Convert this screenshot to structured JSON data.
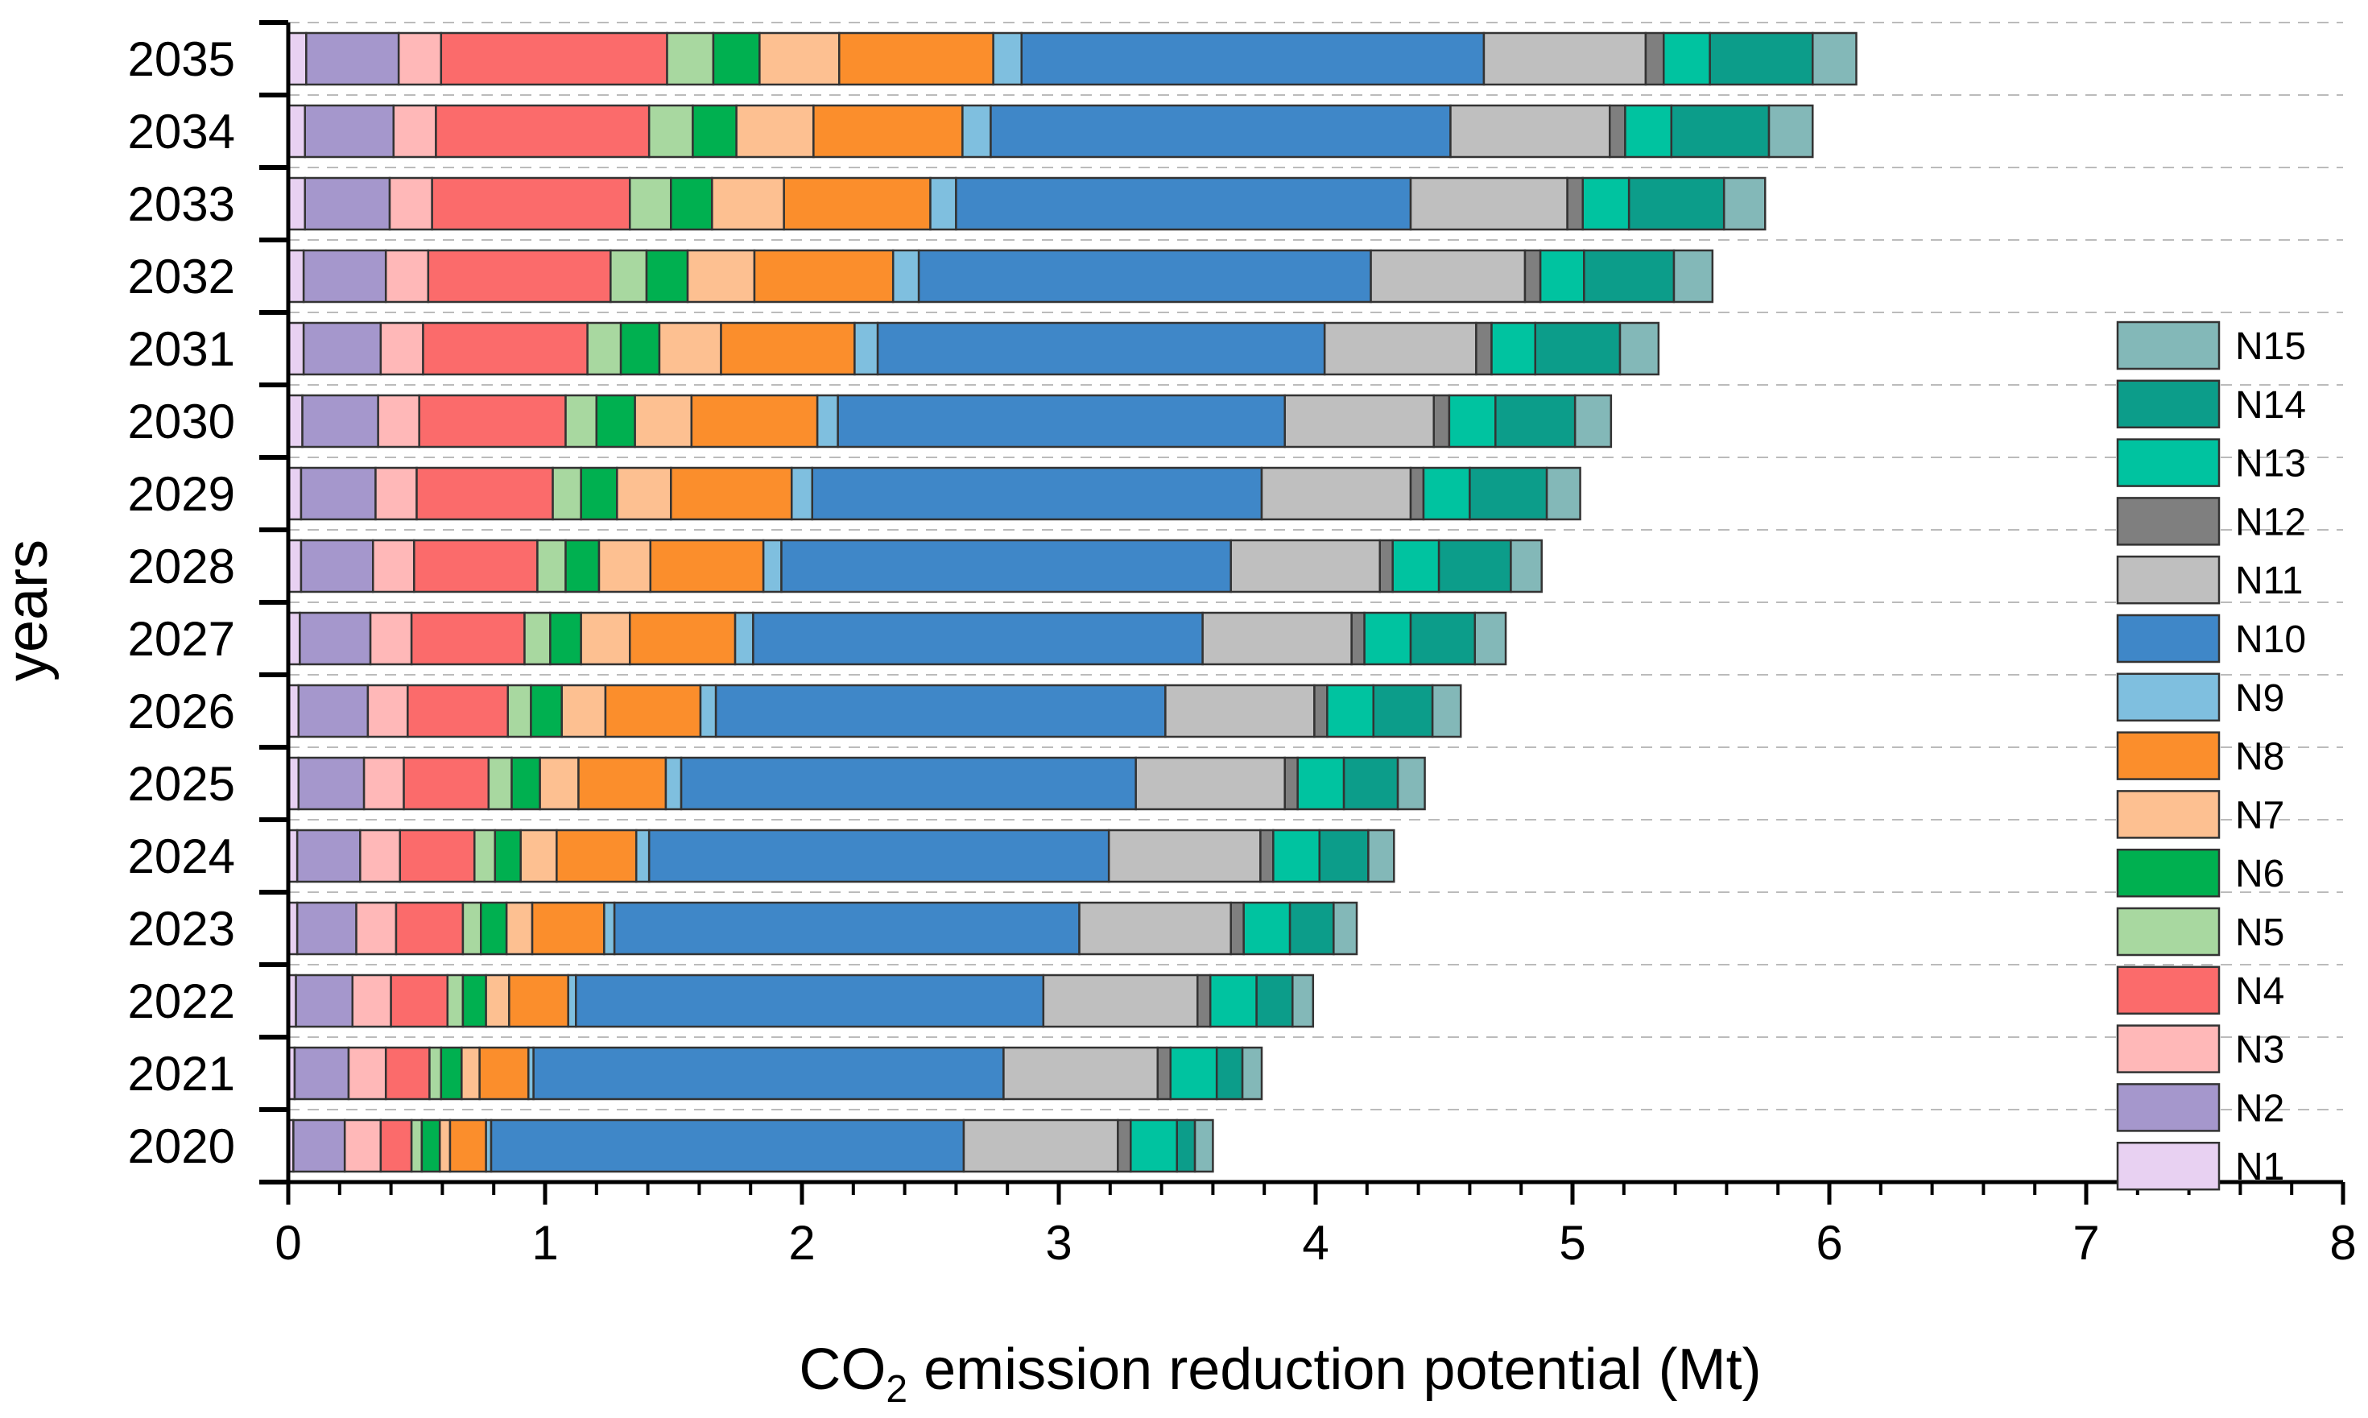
{
  "chart_data": {
    "type": "bar",
    "orientation": "horizontal",
    "stacked": true,
    "categories": [
      "2020",
      "2021",
      "2022",
      "2023",
      "2024",
      "2025",
      "2026",
      "2027",
      "2028",
      "2029",
      "2030",
      "2031",
      "2032",
      "2033",
      "2034",
      "2035"
    ],
    "xlabel_prefix": "CO",
    "xlabel_sub": "2",
    "xlabel_suffix": " emission reduction potential (Mt)",
    "ylabel": "years",
    "xlim": [
      0,
      8
    ],
    "xticks": [
      "0",
      "1",
      "2",
      "3",
      "4",
      "5",
      "6",
      "7",
      "8"
    ],
    "grid": "horizontal dashed",
    "legend_position": "right",
    "series": [
      {
        "name": "N1",
        "color": "#e8d1f2",
        "values": [
          0.02,
          0.025,
          0.03,
          0.035,
          0.035,
          0.04,
          0.04,
          0.045,
          0.05,
          0.05,
          0.055,
          0.06,
          0.06,
          0.065,
          0.065,
          0.07
        ]
      },
      {
        "name": "N2",
        "color": "#a597cc",
        "values": [
          0.2,
          0.21,
          0.22,
          0.23,
          0.245,
          0.255,
          0.27,
          0.275,
          0.28,
          0.29,
          0.295,
          0.3,
          0.32,
          0.33,
          0.345,
          0.36
        ]
      },
      {
        "name": "N3",
        "color": "#ffb8b8",
        "values": [
          0.14,
          0.145,
          0.15,
          0.155,
          0.155,
          0.155,
          0.155,
          0.16,
          0.16,
          0.16,
          0.16,
          0.165,
          0.165,
          0.165,
          0.165,
          0.165
        ]
      },
      {
        "name": "N4",
        "color": "#fb6b6b",
        "values": [
          0.12,
          0.17,
          0.22,
          0.26,
          0.29,
          0.33,
          0.39,
          0.44,
          0.48,
          0.53,
          0.57,
          0.64,
          0.71,
          0.77,
          0.83,
          0.88
        ]
      },
      {
        "name": "N5",
        "color": "#a8d8a0",
        "values": [
          0.04,
          0.045,
          0.06,
          0.07,
          0.08,
          0.09,
          0.09,
          0.1,
          0.11,
          0.11,
          0.12,
          0.13,
          0.14,
          0.16,
          0.17,
          0.18
        ]
      },
      {
        "name": "N6",
        "color": "#00b050",
        "values": [
          0.07,
          0.08,
          0.09,
          0.1,
          0.1,
          0.11,
          0.12,
          0.12,
          0.13,
          0.14,
          0.15,
          0.15,
          0.16,
          0.16,
          0.17,
          0.18
        ]
      },
      {
        "name": "N7",
        "color": "#fdc091",
        "values": [
          0.04,
          0.07,
          0.09,
          0.1,
          0.14,
          0.15,
          0.17,
          0.19,
          0.2,
          0.21,
          0.22,
          0.24,
          0.26,
          0.28,
          0.3,
          0.31
        ]
      },
      {
        "name": "N8",
        "color": "#fb8e2c",
        "values": [
          0.14,
          0.19,
          0.23,
          0.28,
          0.31,
          0.34,
          0.37,
          0.41,
          0.44,
          0.47,
          0.49,
          0.52,
          0.54,
          0.57,
          0.58,
          0.6
        ]
      },
      {
        "name": "N9",
        "color": "#7fbfdf",
        "values": [
          0.02,
          0.02,
          0.03,
          0.04,
          0.05,
          0.06,
          0.06,
          0.07,
          0.07,
          0.08,
          0.08,
          0.09,
          0.1,
          0.1,
          0.11,
          0.11
        ]
      },
      {
        "name": "N10",
        "color": "#3f87c8",
        "values": [
          1.84,
          1.83,
          1.82,
          1.81,
          1.79,
          1.77,
          1.75,
          1.75,
          1.75,
          1.75,
          1.74,
          1.74,
          1.76,
          1.77,
          1.79,
          1.8
        ]
      },
      {
        "name": "N11",
        "color": "#bfbfbf",
        "values": [
          0.6,
          0.6,
          0.6,
          0.59,
          0.59,
          0.58,
          0.58,
          0.58,
          0.58,
          0.58,
          0.58,
          0.59,
          0.6,
          0.61,
          0.62,
          0.63
        ]
      },
      {
        "name": "N12",
        "color": "#7f7f7f",
        "values": [
          0.05,
          0.05,
          0.05,
          0.05,
          0.05,
          0.05,
          0.05,
          0.05,
          0.05,
          0.05,
          0.06,
          0.06,
          0.06,
          0.06,
          0.06,
          0.07
        ]
      },
      {
        "name": "N13",
        "color": "#00c3a0",
        "values": [
          0.18,
          0.18,
          0.18,
          0.18,
          0.18,
          0.18,
          0.18,
          0.18,
          0.18,
          0.18,
          0.18,
          0.17,
          0.17,
          0.18,
          0.18,
          0.18
        ]
      },
      {
        "name": "N14",
        "color": "#0c9d8a",
        "values": [
          0.07,
          0.1,
          0.14,
          0.17,
          0.19,
          0.21,
          0.23,
          0.25,
          0.28,
          0.3,
          0.31,
          0.33,
          0.35,
          0.37,
          0.38,
          0.4
        ]
      },
      {
        "name": "N15",
        "color": "#83b8b8",
        "values": [
          0.07,
          0.075,
          0.08,
          0.09,
          0.1,
          0.105,
          0.11,
          0.12,
          0.12,
          0.13,
          0.14,
          0.15,
          0.15,
          0.16,
          0.17,
          0.17
        ]
      }
    ]
  }
}
